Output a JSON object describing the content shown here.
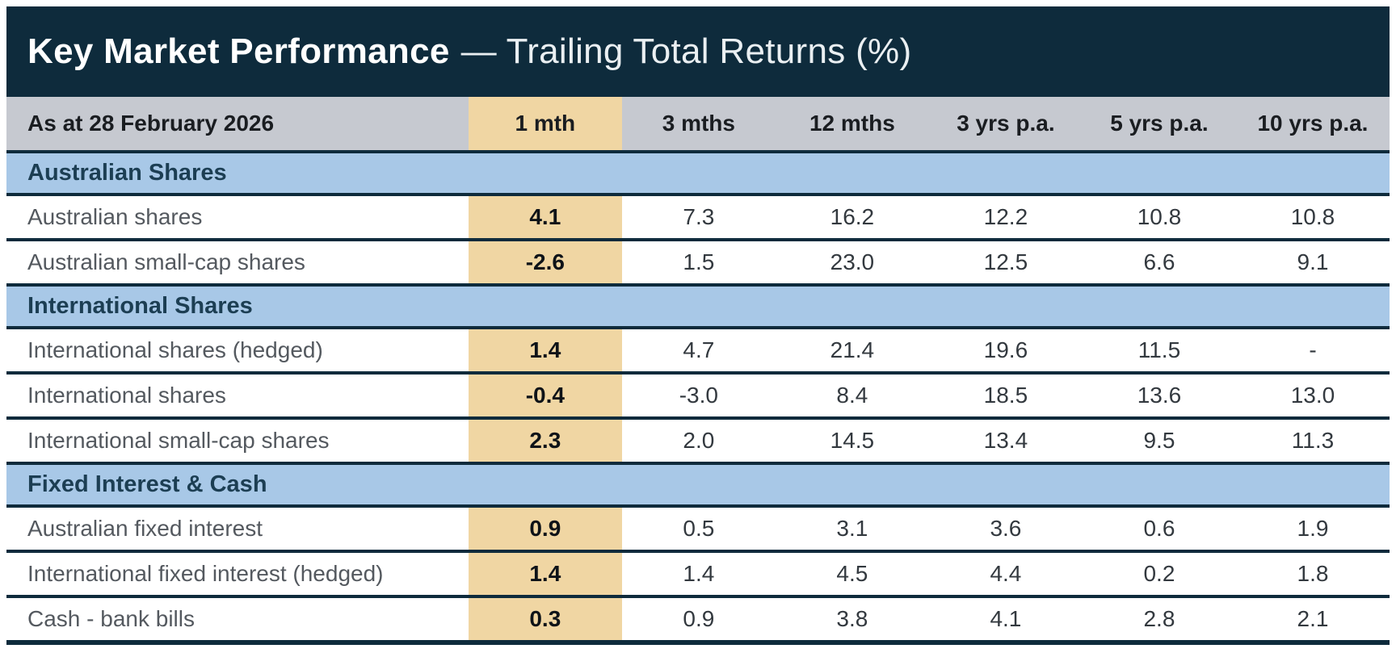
{
  "title": {
    "strong": "Key Market Performance",
    "rest": "— Trailing Total Returns (%)"
  },
  "table": {
    "as_at": "As at 28 February 2026",
    "columns": [
      "1 mth",
      "3 mths",
      "12 mths",
      "3 yrs p.a.",
      "5 yrs p.a.",
      "10 yrs p.a."
    ],
    "sections": [
      {
        "title": "Australian Shares",
        "rows": [
          {
            "label": "Australian shares",
            "values": [
              "4.1",
              "7.3",
              "16.2",
              "12.2",
              "10.8",
              "10.8"
            ]
          },
          {
            "label": "Australian small-cap shares",
            "values": [
              "-2.6",
              "1.5",
              "23.0",
              "12.5",
              "6.6",
              "9.1"
            ]
          }
        ]
      },
      {
        "title": "International Shares",
        "rows": [
          {
            "label": "International shares (hedged)",
            "values": [
              "1.4",
              "4.7",
              "21.4",
              "19.6",
              "11.5",
              "-"
            ]
          },
          {
            "label": "International shares",
            "values": [
              "-0.4",
              "-3.0",
              "8.4",
              "18.5",
              "13.6",
              "13.0"
            ]
          },
          {
            "label": "International small-cap shares",
            "values": [
              "2.3",
              "2.0",
              "14.5",
              "13.4",
              "9.5",
              "11.3"
            ]
          }
        ]
      },
      {
        "title": "Fixed Interest & Cash",
        "rows": [
          {
            "label": "Australian fixed interest",
            "values": [
              "0.9",
              "0.5",
              "3.1",
              "3.6",
              "0.6",
              "1.9"
            ]
          },
          {
            "label": "International fixed interest (hedged)",
            "values": [
              "1.4",
              "1.4",
              "4.5",
              "4.4",
              "0.2",
              "1.8"
            ]
          },
          {
            "label": "Cash - bank bills",
            "values": [
              "0.3",
              "0.9",
              "3.8",
              "4.1",
              "2.8",
              "2.1"
            ]
          }
        ]
      }
    ]
  },
  "colors": {
    "navy": "#0E2B3C",
    "header_gray": "#C6C9D0",
    "section_blue": "#A8C8E7",
    "highlight_tan": "#F0D6A3",
    "section_text": "#1C3E53"
  },
  "chart_data": {
    "type": "table",
    "title": "Key Market Performance — Trailing Total Returns (%)",
    "as_at": "As at 28 February 2026",
    "columns": [
      "1 mth",
      "3 mths",
      "12 mths",
      "3 yrs p.a.",
      "5 yrs p.a.",
      "10 yrs p.a."
    ],
    "highlight_column": "1 mth",
    "groups": [
      {
        "group": "Australian Shares",
        "rows": [
          {
            "label": "Australian shares",
            "values": [
              4.1,
              7.3,
              16.2,
              12.2,
              10.8,
              10.8
            ]
          },
          {
            "label": "Australian small-cap shares",
            "values": [
              -2.6,
              1.5,
              23.0,
              12.5,
              6.6,
              9.1
            ]
          }
        ]
      },
      {
        "group": "International Shares",
        "rows": [
          {
            "label": "International shares (hedged)",
            "values": [
              1.4,
              4.7,
              21.4,
              19.6,
              11.5,
              null
            ]
          },
          {
            "label": "International shares",
            "values": [
              -0.4,
              -3.0,
              8.4,
              18.5,
              13.6,
              13.0
            ]
          },
          {
            "label": "International small-cap shares",
            "values": [
              2.3,
              2.0,
              14.5,
              13.4,
              9.5,
              11.3
            ]
          }
        ]
      },
      {
        "group": "Fixed Interest & Cash",
        "rows": [
          {
            "label": "Australian fixed interest",
            "values": [
              0.9,
              0.5,
              3.1,
              3.6,
              0.6,
              1.9
            ]
          },
          {
            "label": "International fixed interest (hedged)",
            "values": [
              1.4,
              1.4,
              4.5,
              4.4,
              0.2,
              1.8
            ]
          },
          {
            "label": "Cash - bank bills",
            "values": [
              0.3,
              0.9,
              3.8,
              4.1,
              2.8,
              2.1
            ]
          }
        ]
      }
    ]
  }
}
